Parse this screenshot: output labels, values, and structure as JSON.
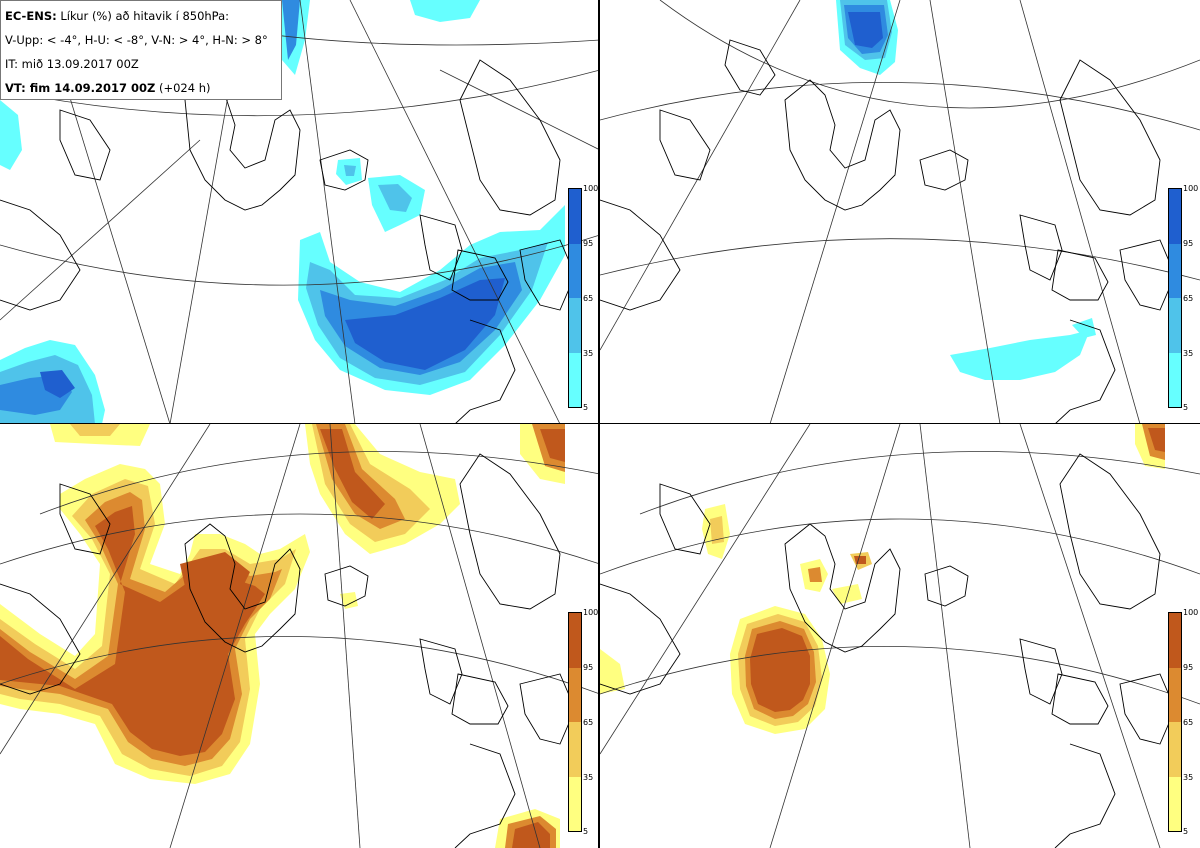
{
  "info": {
    "model": "EC-ENS:",
    "title": "Líkur (%) að hitavik í 850hPa:",
    "thresholds": "V-Upp: < -4°, H-U: < -8°, V-N: > 4°, H-N: > 8°",
    "it": "IT: mið 13.09.2017 00Z",
    "vt_label": "VT: fim 14.09.2017 00Z",
    "vt_offset": "(+024 h)"
  },
  "colorbar_ticks": [
    "100",
    "95",
    "65",
    "35",
    "5"
  ],
  "colors": {
    "cold": [
      "#66ffff",
      "#4fc3ea",
      "#2f8be0",
      "#1f5fcf"
    ],
    "warm": [
      "#ffff80",
      "#f2cc5a",
      "#dc8a30",
      "#c0581c"
    ]
  },
  "panels": [
    {
      "id": "top-left",
      "field": "V-Upp",
      "palette": "cold"
    },
    {
      "id": "top-right",
      "field": "H-U",
      "palette": "cold"
    },
    {
      "id": "bottom-left",
      "field": "V-N",
      "palette": "warm"
    },
    {
      "id": "bottom-right",
      "field": "H-N",
      "palette": "warm"
    }
  ]
}
